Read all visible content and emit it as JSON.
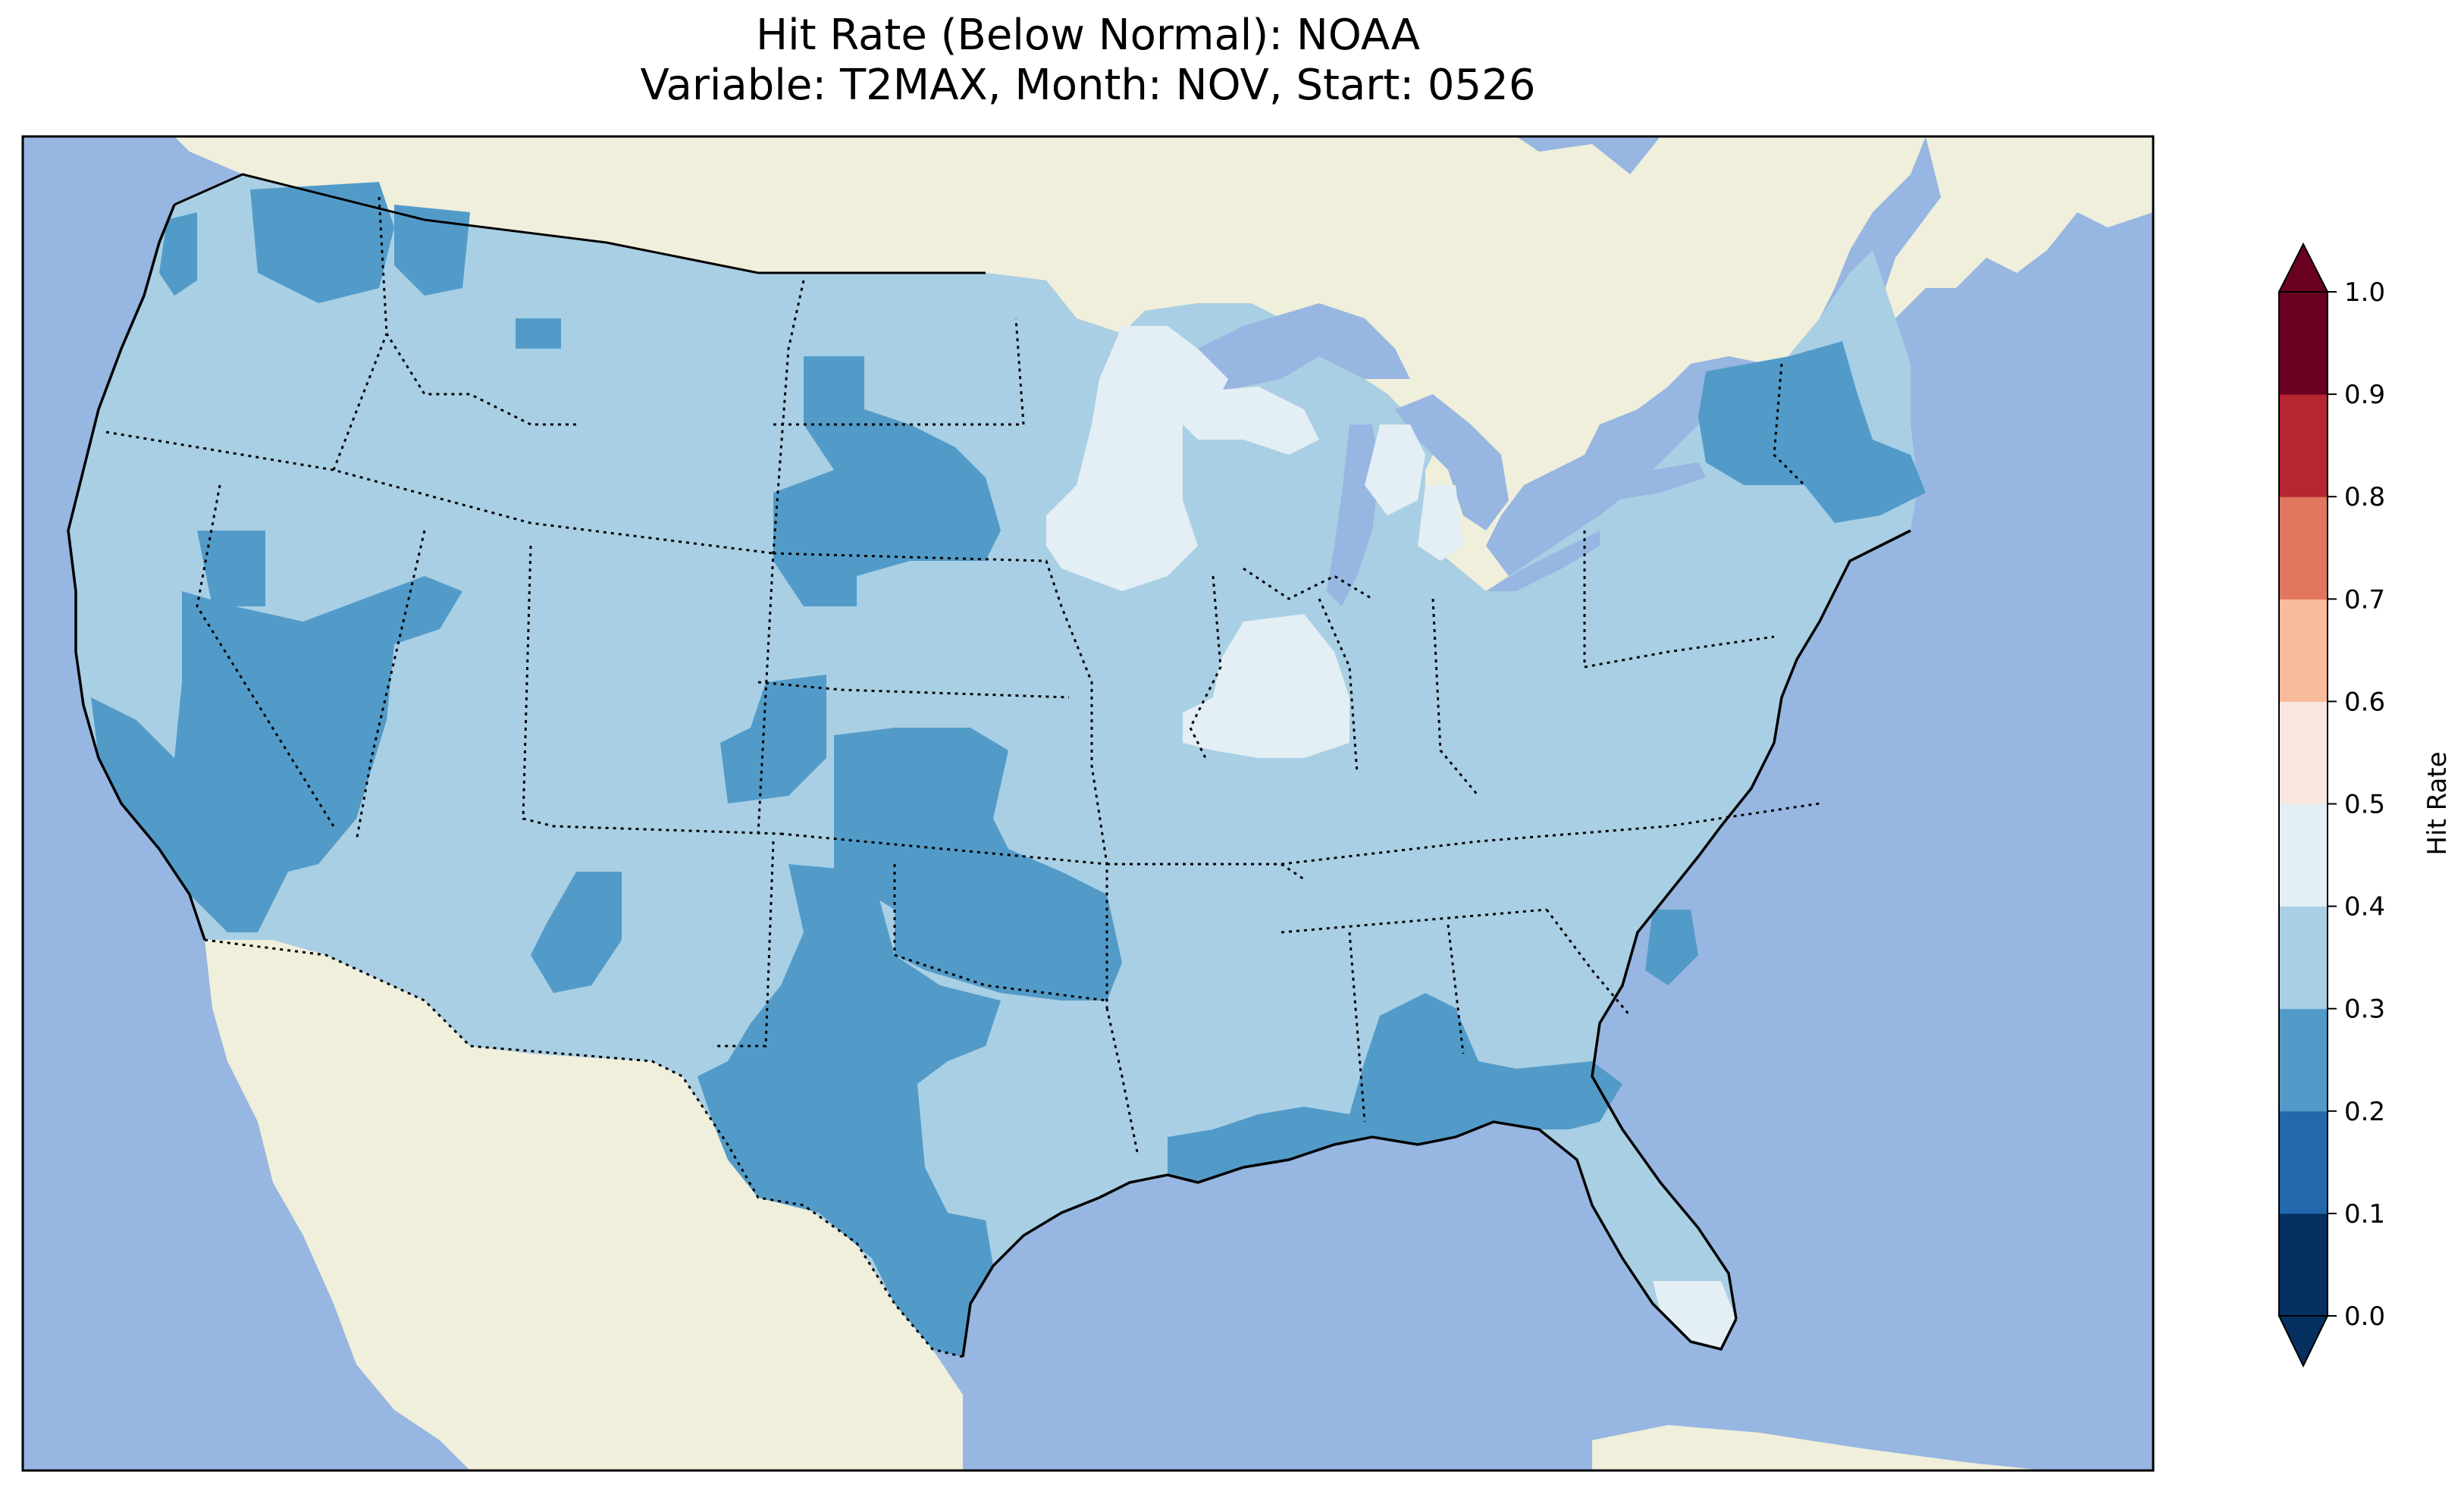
{
  "title": {
    "line1": "Hit Rate (Below Normal): NOAA",
    "line2": "Variable: T2MAX, Month: NOV, Start: 0526"
  },
  "colors": {
    "ocean": "#97b6e1",
    "land": "#efefdb",
    "lake": "#97b6e1"
  },
  "colorbar": {
    "label": "Hit Rate",
    "ticks": [
      "0.0",
      "0.1",
      "0.2",
      "0.3",
      "0.4",
      "0.5",
      "0.6",
      "0.7",
      "0.8",
      "0.9",
      "1.0"
    ],
    "bins": [
      "#053061",
      "#2166ac",
      "#4393c3",
      "#92c5de",
      "#d1e5f0",
      "#f7f7f7",
      "#fddbc7",
      "#f4a582",
      "#d6604d",
      "#b2182b"
    ],
    "bin_display": [
      "#06305f",
      "#2268ad",
      "#529bc9",
      "#a9cfe4",
      "#e3eef5",
      "#f9e7df",
      "#f8bc9c",
      "#e0775e",
      "#b62630",
      "#6a0020"
    ],
    "under_color": "#053061",
    "over_color": "#67001f"
  },
  "map_data": {
    "type": "gridded-choropleth",
    "variable": "T2MAX",
    "month": "NOV",
    "start": "0526",
    "category": "Below Normal",
    "model": "NOAA",
    "region": "CONUS",
    "value_classes": [
      {
        "range": "0.2-0.3",
        "areas": [
          "Washington Cascades",
          "Central Oregon",
          "Nevada",
          "California Central Valley",
          "Southern California",
          "Northern Idaho",
          "South Dakota",
          "Colorado east",
          "Kansas",
          "Oklahoma",
          "West Texas",
          "Central Texas",
          "New Mexico",
          "Arizona",
          "Louisiana coast",
          "Mississippi coast",
          "Alabama",
          "Georgia south",
          "South Carolina",
          "New York east",
          "Vermont",
          "Massachusetts"
        ]
      },
      {
        "range": "0.3-0.4",
        "areas": [
          "Most of CONUS"
        ]
      },
      {
        "range": "0.4-0.5",
        "areas": [
          "Minnesota",
          "Wisconsin",
          "Illinois",
          "Michigan",
          "Florida south"
        ]
      }
    ]
  }
}
